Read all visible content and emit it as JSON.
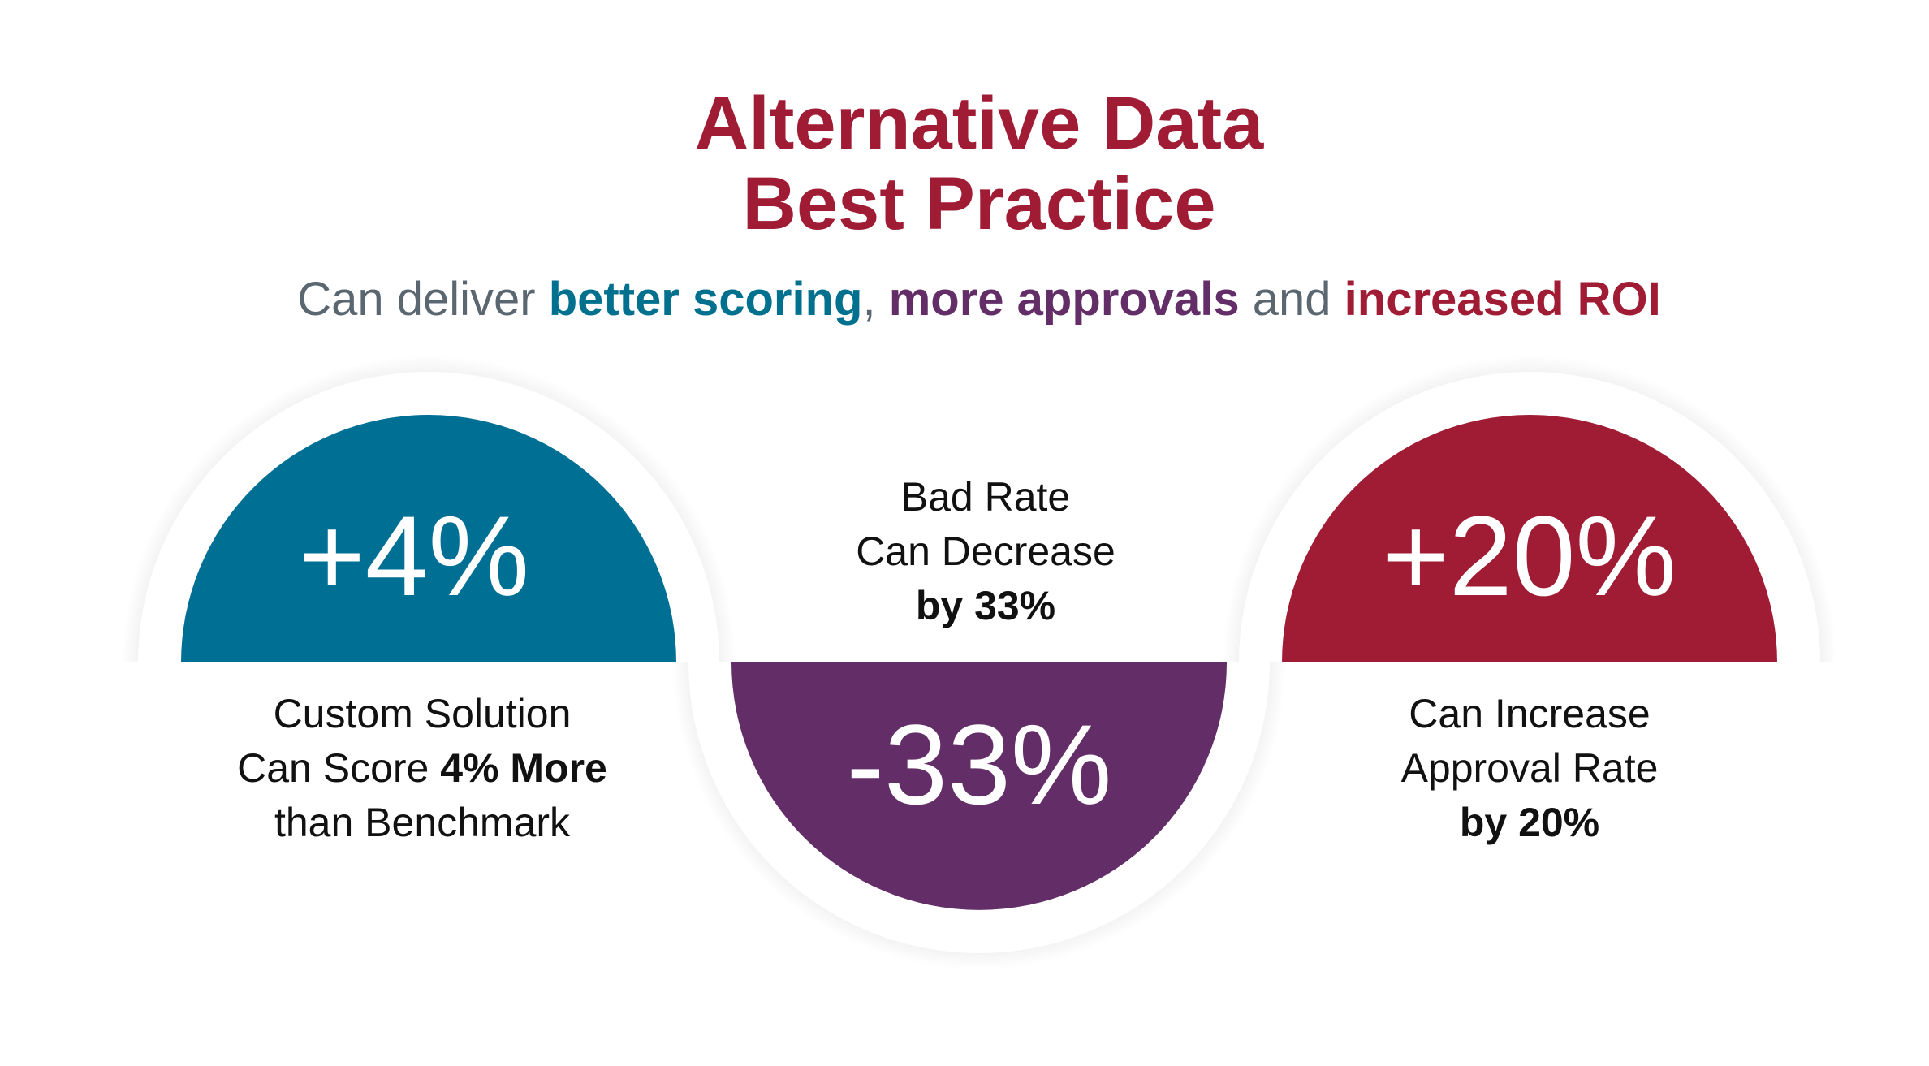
{
  "header": {
    "title": [
      "Alternative Data",
      "Best Practice"
    ],
    "subtitle": [
      "Can deliver ",
      "better scoring",
      ", ",
      "more approvals",
      " and ",
      "increased ROI"
    ]
  },
  "items": [
    {
      "value": "+4%",
      "lines": [
        {
          "text": "Custom Solution"
        },
        {
          "text": "Can Score ",
          "bold": "4% More"
        },
        {
          "text": "than Benchmark"
        }
      ]
    },
    {
      "value": "-33%",
      "lines": [
        {
          "text": "Bad Rate"
        },
        {
          "text": "Can Decrease"
        },
        {
          "bold": "by 33%"
        }
      ]
    },
    {
      "value": "+20%",
      "lines": [
        {
          "text": "Can Increase"
        },
        {
          "text": "Approval Rate"
        },
        {
          "bold": "by 20%"
        }
      ]
    }
  ]
}
